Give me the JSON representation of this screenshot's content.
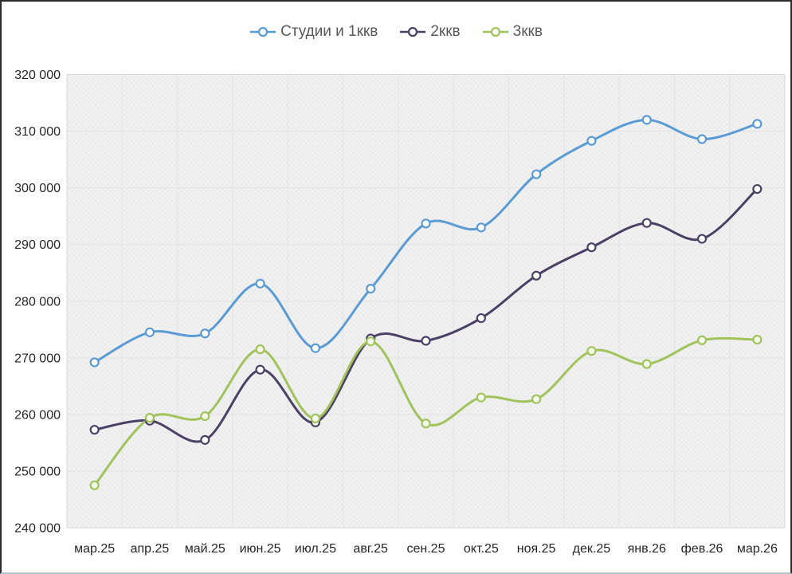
{
  "chart_data": {
    "type": "line",
    "title": "",
    "categories": [
      "мар.25",
      "апр.25",
      "май.25",
      "июн.25",
      "июл.25",
      "авг.25",
      "сен.25",
      "окт.25",
      "ноя.25",
      "дек.25",
      "янв.26",
      "фев.26",
      "мар.26"
    ],
    "series": [
      {
        "name": "Студии и 1ккв",
        "color": "#5b9bd5",
        "marker_fill": "#ffffff",
        "values": [
          269200,
          274500,
          274300,
          283100,
          271700,
          282200,
          293700,
          293000,
          302400,
          308300,
          312000,
          308600,
          311300
        ]
      },
      {
        "name": "2ккв",
        "color": "#4a4266",
        "marker_fill": "#ffffff",
        "values": [
          257300,
          258900,
          255500,
          267900,
          258600,
          273400,
          273000,
          277000,
          284500,
          289500,
          293800,
          291000,
          299800
        ]
      },
      {
        "name": "3ккв",
        "color": "#a2c25c",
        "marker_fill": "#f4f8e8",
        "values": [
          247500,
          259400,
          259700,
          271500,
          259300,
          272900,
          258400,
          263000,
          262700,
          271200,
          268900,
          273100,
          273200
        ]
      }
    ],
    "xlabel": "",
    "ylabel": "",
    "ylim": [
      240000,
      320000
    ],
    "ytick_step": 10000,
    "ytick_labels": [
      "240 000",
      "250 000",
      "260 000",
      "270 000",
      "280 000",
      "290 000",
      "300 000",
      "310 000",
      "320 000"
    ],
    "grid": "horizontal and vertical, light gray on hatched fill",
    "legend_position": "top-center",
    "line_style": "smooth",
    "marker": "open-circle",
    "plot_fill": "#f2f2f2",
    "grid_color": "#e3e3e3",
    "axis_text_color": "#262626",
    "legend_text_color": "#595959"
  }
}
